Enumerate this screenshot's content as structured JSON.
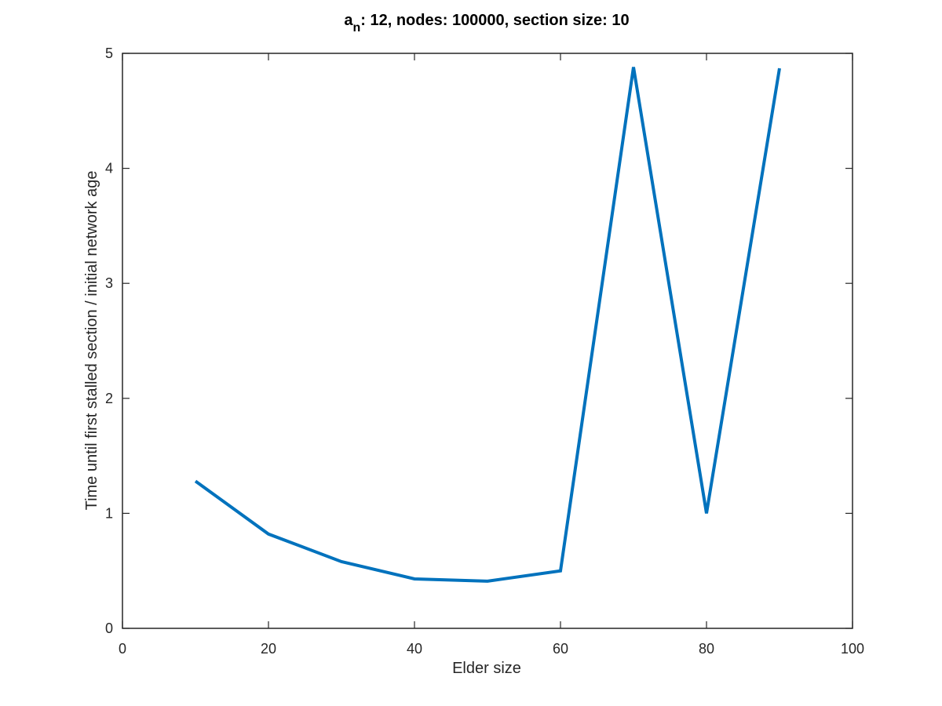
{
  "chart_data": {
    "type": "line",
    "title": {
      "symbol": "a",
      "subscript": "n",
      "rest": ": 12, nodes: 100000, section size: 10"
    },
    "xlabel": "Elder size",
    "ylabel": "Time until first stalled section / initial network age",
    "xlim": [
      0,
      100
    ],
    "ylim": [
      0,
      5
    ],
    "xticks": [
      0,
      20,
      40,
      60,
      80,
      100
    ],
    "yticks": [
      0,
      1,
      2,
      3,
      4,
      5
    ],
    "grid": false,
    "series": [
      {
        "color": "#0072bd",
        "x": [
          10,
          20,
          30,
          40,
          50,
          60,
          70,
          80,
          90
        ],
        "y": [
          1.28,
          0.82,
          0.58,
          0.43,
          0.41,
          0.5,
          4.88,
          1.0,
          4.87
        ]
      }
    ]
  }
}
